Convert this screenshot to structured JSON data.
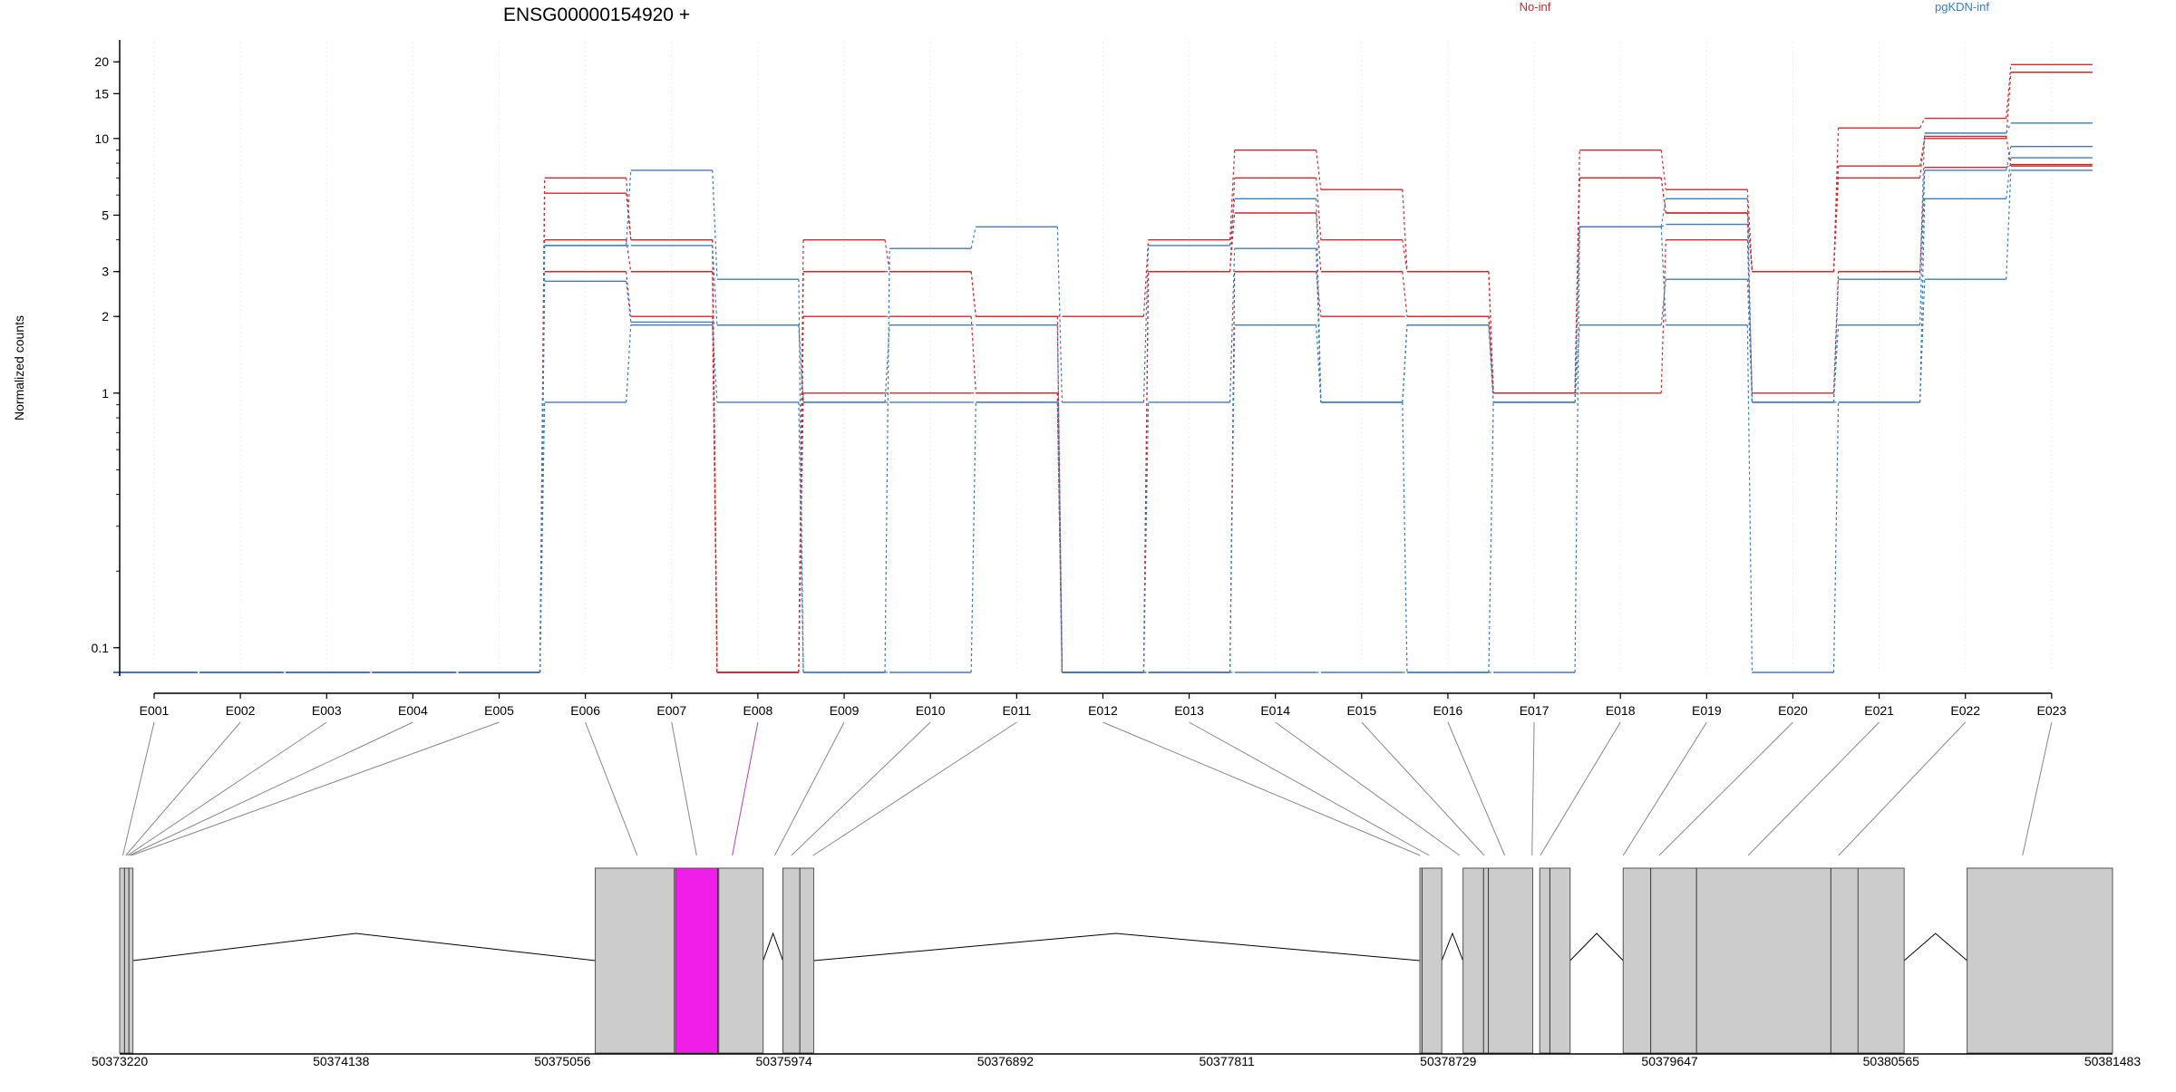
{
  "chart_data": {
    "type": "line",
    "title": "ENSG00000154920 +",
    "ylabel": "Normalized counts",
    "xlabel": "",
    "y_scale": "log",
    "ylim": [
      0.08,
      24
    ],
    "y_ticks": [
      {
        "value": 0.1,
        "label": "0.1"
      },
      {
        "value": 1,
        "label": "1"
      },
      {
        "value": 2,
        "label": "2"
      },
      {
        "value": 3,
        "label": "3"
      },
      {
        "value": 5,
        "label": "5"
      },
      {
        "value": 10,
        "label": "10"
      },
      {
        "value": 15,
        "label": "15"
      },
      {
        "value": 20,
        "label": "20"
      }
    ],
    "floor_value": 0.08,
    "grid": "vertical",
    "legend_position": "top-right",
    "categories": [
      "E001",
      "E002",
      "E003",
      "E004",
      "E005",
      "E006",
      "E007",
      "E008",
      "E009",
      "E010",
      "E011",
      "E012",
      "E013",
      "E014",
      "E015",
      "E016",
      "E017",
      "E018",
      "E019",
      "E020",
      "E021",
      "E022",
      "E023"
    ],
    "highlight_exon": "E008",
    "groups": [
      {
        "name": "No-inf",
        "color": "#d62728"
      },
      {
        "name": "pgKDN-inf",
        "color": "#3a7dc0"
      }
    ],
    "series": [
      {
        "group": "No-inf",
        "values": [
          0.08,
          0.08,
          0.08,
          0.08,
          0.08,
          7.0,
          4.0,
          0.08,
          4.0,
          3.0,
          2.0,
          2.0,
          4.0,
          9.0,
          6.3,
          3.0,
          1.0,
          9.0,
          6.3,
          3.0,
          11.0,
          12.0,
          19.5
        ]
      },
      {
        "group": "No-inf",
        "values": [
          0.08,
          0.08,
          0.08,
          0.08,
          0.08,
          6.1,
          4.0,
          0.08,
          3.0,
          3.0,
          2.0,
          0.08,
          3.0,
          7.0,
          4.0,
          3.0,
          1.0,
          7.0,
          5.1,
          3.0,
          7.8,
          10.0,
          18.2
        ]
      },
      {
        "group": "No-inf",
        "values": [
          0.08,
          0.08,
          0.08,
          0.08,
          0.08,
          4.0,
          3.0,
          0.08,
          2.0,
          2.0,
          1.0,
          0.08,
          3.0,
          5.1,
          3.0,
          2.0,
          1.0,
          7.0,
          5.1,
          3.0,
          7.0,
          10.2,
          7.8
        ]
      },
      {
        "group": "No-inf",
        "values": [
          0.08,
          0.08,
          0.08,
          0.08,
          0.08,
          3.0,
          2.0,
          0.08,
          1.0,
          1.0,
          1.0,
          0.08,
          0.08,
          3.0,
          2.0,
          2.0,
          1.0,
          1.0,
          4.0,
          1.0,
          3.0,
          7.7,
          7.9
        ]
      },
      {
        "group": "pgKDN-inf",
        "values": [
          0.08,
          0.08,
          0.08,
          0.08,
          0.08,
          3.8,
          7.5,
          2.8,
          0.08,
          3.7,
          4.5,
          0.92,
          3.8,
          5.8,
          0.92,
          1.85,
          0.92,
          4.5,
          5.8,
          0.92,
          2.8,
          10.5,
          11.5
        ]
      },
      {
        "group": "pgKDN-inf",
        "values": [
          0.08,
          0.08,
          0.08,
          0.08,
          0.08,
          3.8,
          3.8,
          1.85,
          0.92,
          1.85,
          1.85,
          0.08,
          0.92,
          3.7,
          0.92,
          1.85,
          0.92,
          4.5,
          4.6,
          0.92,
          1.85,
          7.5,
          9.3
        ]
      },
      {
        "group": "pgKDN-inf",
        "values": [
          0.08,
          0.08,
          0.08,
          0.08,
          0.08,
          2.75,
          1.9,
          1.85,
          0.92,
          0.92,
          0.92,
          0.08,
          0.08,
          1.85,
          0.92,
          0.08,
          0.92,
          1.85,
          2.8,
          0.92,
          0.92,
          5.8,
          8.4
        ]
      },
      {
        "group": "pgKDN-inf",
        "values": [
          0.08,
          0.08,
          0.08,
          0.08,
          0.08,
          0.92,
          1.85,
          0.92,
          0.08,
          0.08,
          0.92,
          0.08,
          0.08,
          0.08,
          0.08,
          0.08,
          0.08,
          4.5,
          1.85,
          0.08,
          0.92,
          2.8,
          7.5
        ]
      }
    ],
    "gene_model": {
      "coordinate_ticks": [
        "50373220",
        "50374138",
        "50375056",
        "50375974",
        "50376892",
        "50377811",
        "50378729",
        "50379647",
        "50380565",
        "50381483"
      ],
      "coord_min": 50373220,
      "coord_max": 50381483,
      "exon_blocks": [
        {
          "start": 50373220,
          "end": 50373275
        },
        {
          "start": 50375192,
          "end": 50375526
        },
        {
          "start": 50375526,
          "end": 50375704,
          "highlight": true
        },
        {
          "start": 50375704,
          "end": 50375888
        },
        {
          "start": 50375970,
          "end": 50376098
        },
        {
          "start": 50378611,
          "end": 50378702
        },
        {
          "start": 50378790,
          "end": 50379079
        },
        {
          "start": 50379108,
          "end": 50379234
        },
        {
          "start": 50379454,
          "end": 50380428
        },
        {
          "start": 50380428,
          "end": 50380619
        },
        {
          "start": 50380880,
          "end": 50381483
        }
      ],
      "exon_boundaries": [
        50373240,
        50373258,
        50375520,
        50375699,
        50376040,
        50378620,
        50378875,
        50378895,
        50379150,
        50379568,
        50379758,
        50380315
      ],
      "exon_anchors": [
        50373233,
        50373245,
        50373252,
        50373260,
        50373268,
        50375366,
        50375612,
        50375760,
        50375936,
        50376005,
        50376095,
        50378612,
        50378650,
        50378776,
        50378878,
        50378963,
        50379076,
        50379110,
        50379454,
        50379603,
        50379972,
        50380347,
        50381110
      ],
      "introns": [
        {
          "start": 50373275,
          "end": 50375192,
          "apex": 50374200
        },
        {
          "start": 50375888,
          "end": 50375970,
          "apex": 50375929
        },
        {
          "start": 50376098,
          "end": 50378611,
          "apex": 50377350
        },
        {
          "start": 50378702,
          "end": 50378790,
          "apex": 50378746
        },
        {
          "start": 50379234,
          "end": 50379454,
          "apex": 50379344
        },
        {
          "start": 50380619,
          "end": 50380880,
          "apex": 50380749
        }
      ]
    }
  },
  "colors": {
    "no_inf": "#d62728",
    "pgkdn_inf": "#3a7dc0",
    "highlight": "#f01ee8",
    "exon_fill": "#cccccc",
    "axis": "#000000"
  }
}
